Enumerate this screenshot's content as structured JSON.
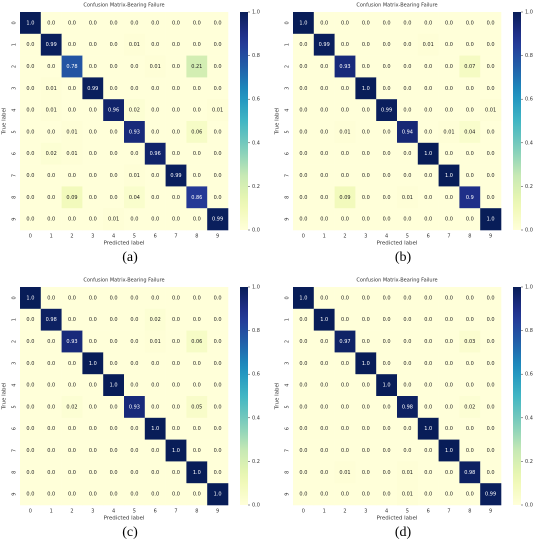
{
  "chart_data": [
    {
      "type": "heatmap",
      "title": "Confusion Matrix-Bearing Failure",
      "caption": "(a)",
      "xlabel": "Predicted label",
      "ylabel": "True label",
      "x": [
        "0",
        "1",
        "2",
        "3",
        "4",
        "5",
        "6",
        "7",
        "8",
        "9"
      ],
      "y": [
        "0",
        "1",
        "2",
        "3",
        "4",
        "5",
        "6",
        "7",
        "8",
        "9"
      ],
      "colormap": "YlGnBu",
      "zlim": [
        0,
        1
      ],
      "zticks": [
        {
          "value": 0,
          "label": "0.0"
        },
        {
          "value": 0.2,
          "label": "0.2"
        },
        {
          "value": 0.4,
          "label": "0.4"
        },
        {
          "value": 0.6,
          "label": "0.6"
        },
        {
          "value": 0.8,
          "label": "0.8"
        },
        {
          "value": 1,
          "label": "1.0"
        }
      ],
      "values": [
        [
          1,
          0,
          0,
          0,
          0,
          0,
          0,
          0,
          0,
          0
        ],
        [
          0,
          0.99,
          0,
          0,
          0,
          0.01,
          0,
          0,
          0,
          0
        ],
        [
          0,
          0,
          0.78,
          0,
          0,
          0,
          0.01,
          0,
          0.21,
          0
        ],
        [
          0,
          0.01,
          0,
          0.99,
          0,
          0,
          0,
          0,
          0,
          0
        ],
        [
          0,
          0.01,
          0,
          0,
          0.96,
          0.02,
          0,
          0,
          0,
          0.01
        ],
        [
          0,
          0,
          0.01,
          0,
          0,
          0.93,
          0,
          0,
          0.06,
          0
        ],
        [
          0,
          0.02,
          0.01,
          0,
          0,
          0,
          0.96,
          0,
          0,
          0
        ],
        [
          0,
          0,
          0,
          0,
          0,
          0.01,
          0,
          0.99,
          0,
          0
        ],
        [
          0,
          0,
          0.09,
          0,
          0,
          0.04,
          0,
          0,
          0.86,
          0
        ],
        [
          0,
          0,
          0,
          0,
          0.01,
          0,
          0,
          0,
          0,
          0.99
        ]
      ],
      "value_labels": [
        [
          "1.0",
          "0.0",
          "0.0",
          "0.0",
          "0.0",
          "0.0",
          "0.0",
          "0.0",
          "0.0",
          "0.0"
        ],
        [
          "0.0",
          "0.99",
          "0.0",
          "0.0",
          "0.0",
          "0.01",
          "0.0",
          "0.0",
          "0.0",
          "0.0"
        ],
        [
          "0.0",
          "0.0",
          "0.78",
          "0.0",
          "0.0",
          "0.0",
          "0.01",
          "0.0",
          "0.21",
          "0.0"
        ],
        [
          "0.0",
          "0.01",
          "0.0",
          "0.99",
          "0.0",
          "0.0",
          "0.0",
          "0.0",
          "0.0",
          "0.0"
        ],
        [
          "0.0",
          "0.01",
          "0.0",
          "0.0",
          "0.96",
          "0.02",
          "0.0",
          "0.0",
          "0.0",
          "0.01"
        ],
        [
          "0.0",
          "0.0",
          "0.01",
          "0.0",
          "0.0",
          "0.93",
          "0.0",
          "0.0",
          "0.06",
          "0.0"
        ],
        [
          "0.0",
          "0.02",
          "0.01",
          "0.0",
          "0.0",
          "0.0",
          "0.96",
          "0.0",
          "0.0",
          "0.0"
        ],
        [
          "0.0",
          "0.0",
          "0.0",
          "0.0",
          "0.0",
          "0.01",
          "0.0",
          "0.99",
          "0.0",
          "0.0"
        ],
        [
          "0.0",
          "0.0",
          "0.09",
          "0.0",
          "0.0",
          "0.04",
          "0.0",
          "0.0",
          "0.86",
          "0.0"
        ],
        [
          "0.0",
          "0.0",
          "0.0",
          "0.0",
          "0.01",
          "0.0",
          "0.0",
          "0.0",
          "0.0",
          "0.99"
        ]
      ]
    },
    {
      "type": "heatmap",
      "title": "Confusion Matrix-Bearing Failure",
      "caption": "(b)",
      "xlabel": "Predicted label",
      "ylabel": "True label",
      "x": [
        "0",
        "1",
        "2",
        "3",
        "4",
        "5",
        "6",
        "7",
        "8",
        "9"
      ],
      "y": [
        "0",
        "1",
        "2",
        "3",
        "4",
        "5",
        "6",
        "7",
        "8",
        "9"
      ],
      "colormap": "YlGnBu",
      "zlim": [
        0,
        1
      ],
      "zticks": [
        {
          "value": 0,
          "label": "0.0"
        },
        {
          "value": 0.2,
          "label": "0.2"
        },
        {
          "value": 0.4,
          "label": "0.4"
        },
        {
          "value": 0.6,
          "label": "0.6"
        },
        {
          "value": 0.8,
          "label": "0.8"
        },
        {
          "value": 1,
          "label": "1.0"
        }
      ],
      "values": [
        [
          1,
          0,
          0,
          0,
          0,
          0,
          0,
          0,
          0,
          0
        ],
        [
          0,
          0.99,
          0,
          0,
          0,
          0,
          0.01,
          0,
          0,
          0
        ],
        [
          0,
          0,
          0.93,
          0,
          0,
          0,
          0,
          0,
          0.07,
          0
        ],
        [
          0,
          0,
          0,
          1,
          0,
          0,
          0,
          0,
          0,
          0
        ],
        [
          0,
          0,
          0,
          0,
          0.99,
          0,
          0,
          0,
          0,
          0.01
        ],
        [
          0,
          0,
          0.01,
          0,
          0,
          0.94,
          0,
          0.01,
          0.04,
          0
        ],
        [
          0,
          0,
          0,
          0,
          0,
          0,
          1,
          0,
          0,
          0
        ],
        [
          0,
          0,
          0,
          0,
          0,
          0,
          0,
          1,
          0,
          0
        ],
        [
          0,
          0,
          0.09,
          0,
          0,
          0.01,
          0,
          0,
          0.9,
          0
        ],
        [
          0,
          0,
          0,
          0,
          0,
          0,
          0,
          0,
          0,
          1
        ]
      ],
      "value_labels": [
        [
          "1.0",
          "0.0",
          "0.0",
          "0.0",
          "0.0",
          "0.0",
          "0.0",
          "0.0",
          "0.0",
          "0.0"
        ],
        [
          "0.0",
          "0.99",
          "0.0",
          "0.0",
          "0.0",
          "0.0",
          "0.01",
          "0.0",
          "0.0",
          "0.0"
        ],
        [
          "0.0",
          "0.0",
          "0.93",
          "0.0",
          "0.0",
          "0.0",
          "0.0",
          "0.0",
          "0.07",
          "0.0"
        ],
        [
          "0.0",
          "0.0",
          "0.0",
          "1.0",
          "0.0",
          "0.0",
          "0.0",
          "0.0",
          "0.0",
          "0.0"
        ],
        [
          "0.0",
          "0.0",
          "0.0",
          "0.0",
          "0.99",
          "0.0",
          "0.0",
          "0.0",
          "0.0",
          "0.01"
        ],
        [
          "0.0",
          "0.0",
          "0.01",
          "0.0",
          "0.0",
          "0.94",
          "0.0",
          "0.01",
          "0.04",
          "0.0"
        ],
        [
          "0.0",
          "0.0",
          "0.0",
          "0.0",
          "0.0",
          "0.0",
          "1.0",
          "0.0",
          "0.0",
          "0.0"
        ],
        [
          "0.0",
          "0.0",
          "0.0",
          "0.0",
          "0.0",
          "0.0",
          "0.0",
          "1.0",
          "0.0",
          "0.0"
        ],
        [
          "0.0",
          "0.0",
          "0.09",
          "0.0",
          "0.0",
          "0.01",
          "0.0",
          "0.0",
          "0.9",
          "0.0"
        ],
        [
          "0.0",
          "0.0",
          "0.0",
          "0.0",
          "0.0",
          "0.0",
          "0.0",
          "0.0",
          "0.0",
          "1.0"
        ]
      ]
    },
    {
      "type": "heatmap",
      "title": "Confusion Matrix-Bearing Failure",
      "caption": "(c)",
      "xlabel": "Predicted label",
      "ylabel": "True label",
      "x": [
        "0",
        "1",
        "2",
        "3",
        "4",
        "5",
        "6",
        "7",
        "8",
        "9"
      ],
      "y": [
        "0",
        "1",
        "2",
        "3",
        "4",
        "5",
        "6",
        "7",
        "8",
        "9"
      ],
      "colormap": "YlGnBu",
      "zlim": [
        0,
        1
      ],
      "zticks": [
        {
          "value": 0,
          "label": "0.0"
        },
        {
          "value": 0.2,
          "label": "0.2"
        },
        {
          "value": 0.4,
          "label": "0.4"
        },
        {
          "value": 0.6,
          "label": "0.6"
        },
        {
          "value": 0.8,
          "label": "0.8"
        },
        {
          "value": 1,
          "label": "1.0"
        }
      ],
      "values": [
        [
          1,
          0,
          0,
          0,
          0,
          0,
          0,
          0,
          0,
          0
        ],
        [
          0,
          0.98,
          0,
          0,
          0,
          0,
          0.02,
          0,
          0,
          0
        ],
        [
          0,
          0,
          0.93,
          0,
          0,
          0,
          0.01,
          0,
          0.06,
          0
        ],
        [
          0,
          0,
          0,
          1,
          0,
          0,
          0,
          0,
          0,
          0
        ],
        [
          0,
          0,
          0,
          0,
          1,
          0,
          0,
          0,
          0,
          0
        ],
        [
          0,
          0,
          0.02,
          0,
          0,
          0.93,
          0,
          0,
          0.05,
          0
        ],
        [
          0,
          0,
          0,
          0,
          0,
          0,
          1,
          0,
          0,
          0
        ],
        [
          0,
          0,
          0,
          0,
          0,
          0,
          0,
          1,
          0,
          0
        ],
        [
          0,
          0,
          0,
          0,
          0,
          0,
          0,
          0,
          1,
          0
        ],
        [
          0,
          0,
          0,
          0,
          0,
          0,
          0,
          0,
          0,
          1
        ]
      ],
      "value_labels": [
        [
          "1.0",
          "0.0",
          "0.0",
          "0.0",
          "0.0",
          "0.0",
          "0.0",
          "0.0",
          "0.0",
          "0.0"
        ],
        [
          "0.0",
          "0.98",
          "0.0",
          "0.0",
          "0.0",
          "0.0",
          "0.02",
          "0.0",
          "0.0",
          "0.0"
        ],
        [
          "0.0",
          "0.0",
          "0.93",
          "0.0",
          "0.0",
          "0.0",
          "0.01",
          "0.0",
          "0.06",
          "0.0"
        ],
        [
          "0.0",
          "0.0",
          "0.0",
          "1.0",
          "0.0",
          "0.0",
          "0.0",
          "0.0",
          "0.0",
          "0.0"
        ],
        [
          "0.0",
          "0.0",
          "0.0",
          "0.0",
          "1.0",
          "0.0",
          "0.0",
          "0.0",
          "0.0",
          "0.0"
        ],
        [
          "0.0",
          "0.0",
          "0.02",
          "0.0",
          "0.0",
          "0.93",
          "0.0",
          "0.0",
          "0.05",
          "0.0"
        ],
        [
          "0.0",
          "0.0",
          "0.0",
          "0.0",
          "0.0",
          "0.0",
          "1.0",
          "0.0",
          "0.0",
          "0.0"
        ],
        [
          "0.0",
          "0.0",
          "0.0",
          "0.0",
          "0.0",
          "0.0",
          "0.0",
          "1.0",
          "0.0",
          "0.0"
        ],
        [
          "0.0",
          "0.0",
          "0.0",
          "0.0",
          "0.0",
          "0.0",
          "0.0",
          "0.0",
          "1.0",
          "0.0"
        ],
        [
          "0.0",
          "0.0",
          "0.0",
          "0.0",
          "0.0",
          "0.0",
          "0.0",
          "0.0",
          "0.0",
          "1.0"
        ]
      ]
    },
    {
      "type": "heatmap",
      "title": "Confusion Matrix-Bearing Failure",
      "caption": "(d)",
      "xlabel": "Predicted label",
      "ylabel": "True label",
      "x": [
        "0",
        "1",
        "2",
        "3",
        "4",
        "5",
        "6",
        "7",
        "8",
        "9"
      ],
      "y": [
        "0",
        "1",
        "2",
        "3",
        "4",
        "5",
        "6",
        "7",
        "8",
        "9"
      ],
      "colormap": "YlGnBu",
      "zlim": [
        0,
        1
      ],
      "zticks": [
        {
          "value": 0,
          "label": "0.0"
        },
        {
          "value": 0.2,
          "label": "0.2"
        },
        {
          "value": 0.4,
          "label": "0.4"
        },
        {
          "value": 0.6,
          "label": "0.6"
        },
        {
          "value": 0.8,
          "label": "0.8"
        },
        {
          "value": 1,
          "label": "1.0"
        }
      ],
      "values": [
        [
          1,
          0,
          0,
          0,
          0,
          0,
          0,
          0,
          0,
          0
        ],
        [
          0,
          1,
          0,
          0,
          0,
          0,
          0,
          0,
          0,
          0
        ],
        [
          0,
          0,
          0.97,
          0,
          0,
          0,
          0,
          0,
          0.03,
          0
        ],
        [
          0,
          0,
          0,
          1,
          0,
          0,
          0,
          0,
          0,
          0
        ],
        [
          0,
          0,
          0,
          0,
          1,
          0,
          0,
          0,
          0,
          0
        ],
        [
          0,
          0,
          0,
          0,
          0,
          0.98,
          0,
          0,
          0.02,
          0
        ],
        [
          0,
          0,
          0,
          0,
          0,
          0,
          1,
          0,
          0,
          0
        ],
        [
          0,
          0,
          0,
          0,
          0,
          0,
          0,
          1,
          0,
          0
        ],
        [
          0,
          0,
          0.01,
          0,
          0,
          0.01,
          0,
          0,
          0.98,
          0
        ],
        [
          0,
          0,
          0,
          0,
          0,
          0.01,
          0,
          0,
          0,
          0.99
        ]
      ],
      "value_labels": [
        [
          "1.0",
          "0.0",
          "0.0",
          "0.0",
          "0.0",
          "0.0",
          "0.0",
          "0.0",
          "0.0",
          "0.0"
        ],
        [
          "0.0",
          "1.0",
          "0.0",
          "0.0",
          "0.0",
          "0.0",
          "0.0",
          "0.0",
          "0.0",
          "0.0"
        ],
        [
          "0.0",
          "0.0",
          "0.97",
          "0.0",
          "0.0",
          "0.0",
          "0.0",
          "0.0",
          "0.03",
          "0.0"
        ],
        [
          "0.0",
          "0.0",
          "0.0",
          "1.0",
          "0.0",
          "0.0",
          "0.0",
          "0.0",
          "0.0",
          "0.0"
        ],
        [
          "0.0",
          "0.0",
          "0.0",
          "0.0",
          "1.0",
          "0.0",
          "0.0",
          "0.0",
          "0.0",
          "0.0"
        ],
        [
          "0.0",
          "0.0",
          "0.0",
          "0.0",
          "0.0",
          "0.98",
          "0.0",
          "0.0",
          "0.02",
          "0.0"
        ],
        [
          "0.0",
          "0.0",
          "0.0",
          "0.0",
          "0.0",
          "0.0",
          "1.0",
          "0.0",
          "0.0",
          "0.0"
        ],
        [
          "0.0",
          "0.0",
          "0.0",
          "0.0",
          "0.0",
          "0.0",
          "0.0",
          "1.0",
          "0.0",
          "0.0"
        ],
        [
          "0.0",
          "0.0",
          "0.01",
          "0.0",
          "0.0",
          "0.01",
          "0.0",
          "0.0",
          "0.98",
          "0.0"
        ],
        [
          "0.0",
          "0.0",
          "0.0",
          "0.0",
          "0.0",
          "0.01",
          "0.0",
          "0.0",
          "0.0",
          "0.99"
        ]
      ]
    }
  ]
}
